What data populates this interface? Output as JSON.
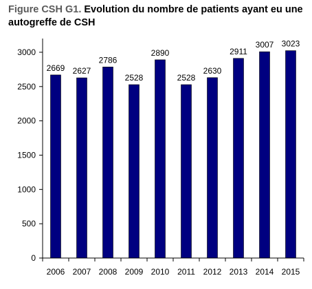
{
  "figure": {
    "prefix": "Figure CSH G1.",
    "title": "Evolution du nombre de patients ayant eu une autogreffe de CSH"
  },
  "chart_data": {
    "type": "bar",
    "categories": [
      "2006",
      "2007",
      "2008",
      "2009",
      "2010",
      "2011",
      "2012",
      "2013",
      "2014",
      "2015"
    ],
    "values": [
      2669,
      2627,
      2786,
      2528,
      2890,
      2528,
      2630,
      2911,
      3007,
      3023
    ],
    "title": "Evolution du nombre de patients ayant eu une autogreffe de CSH",
    "xlabel": "",
    "ylabel": "",
    "ylim": [
      0,
      3200
    ],
    "yticks": [
      0,
      500,
      1000,
      1500,
      2000,
      2500,
      3000
    ],
    "grid": false,
    "legend": "none",
    "bar_color": "#000080",
    "data_labels": true
  }
}
